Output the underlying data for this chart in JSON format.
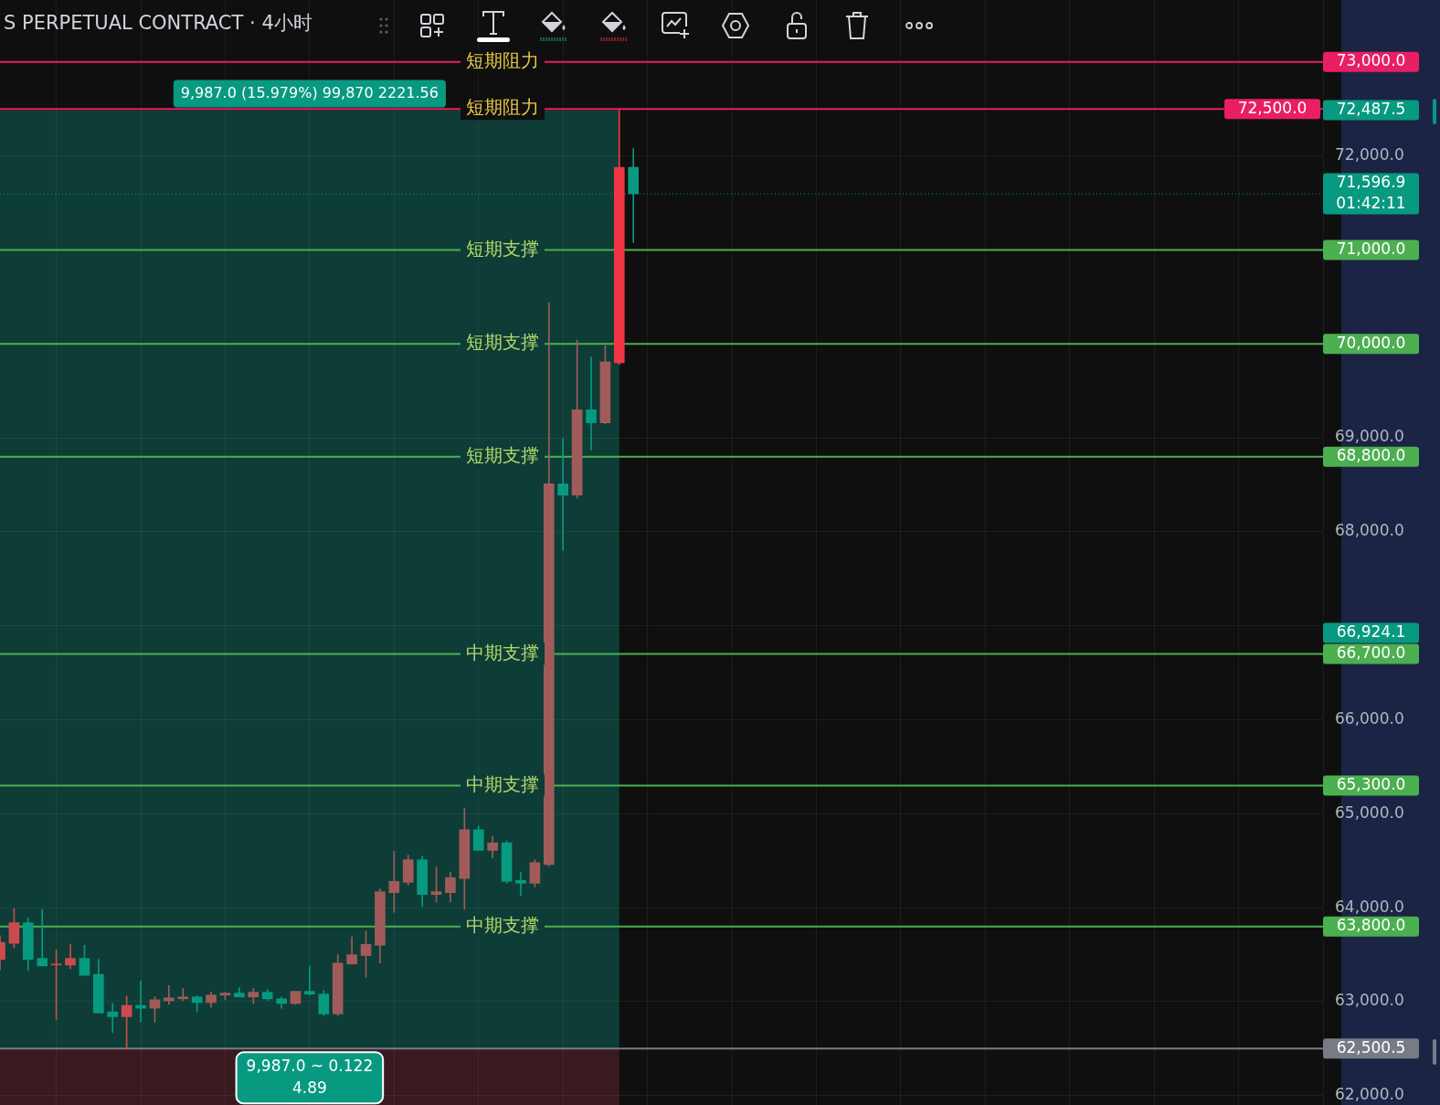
{
  "chart_data": {
    "type": "candlestick",
    "title": "S PERPETUAL CONTRACT · 4小时",
    "categories": [
      null,
      null,
      null,
      null,
      null,
      null,
      null,
      null,
      null,
      null,
      null,
      null,
      null,
      null,
      null,
      null,
      null,
      null,
      null,
      null,
      null,
      null,
      null,
      null,
      null,
      null,
      null,
      null,
      null,
      null,
      null,
      null,
      null,
      null,
      null,
      null,
      null,
      null,
      null,
      null,
      null,
      null,
      null,
      null,
      null,
      null,
      null,
      null,
      null,
      null,
      null,
      null,
      null,
      null,
      null,
      null,
      null,
      null,
      null,
      null,
      null,
      null,
      null,
      null,
      null,
      null,
      null,
      null,
      null,
      null,
      null,
      null,
      null,
      null,
      null,
      null,
      null,
      null,
      null,
      null,
      null,
      null,
      null,
      null,
      null,
      null,
      null,
      null,
      null,
      null,
      null,
      null,
      null,
      null,
      null
    ],
    "ohlc": [
      [
        63450,
        63700,
        63340,
        63630
      ],
      [
        63620,
        63990,
        63570,
        63840
      ],
      [
        63840,
        63890,
        63330,
        63450
      ],
      [
        63460,
        63980,
        63380,
        63380
      ],
      [
        63390,
        63550,
        62810,
        63400
      ],
      [
        63390,
        63610,
        63350,
        63460
      ],
      [
        63460,
        63600,
        63280,
        63280
      ],
      [
        63290,
        63450,
        62880,
        62880
      ],
      [
        62890,
        62980,
        62670,
        62840
      ],
      [
        62840,
        63060,
        62500.5,
        62960
      ],
      [
        62960,
        63220,
        62780,
        62930
      ],
      [
        62930,
        63050,
        62780,
        63020
      ],
      [
        63010,
        63170,
        62970,
        63040
      ],
      [
        63030,
        63140,
        63010,
        63050
      ],
      [
        63050,
        63060,
        62890,
        62990
      ],
      [
        62990,
        63100,
        62940,
        63070
      ],
      [
        63070,
        63100,
        63020,
        63090
      ],
      [
        63090,
        63150,
        63050,
        63050
      ],
      [
        63050,
        63140,
        62980,
        63100
      ],
      [
        63100,
        63130,
        63010,
        63030
      ],
      [
        63030,
        63050,
        62930,
        62980
      ],
      [
        62980,
        63110,
        62970,
        63110
      ],
      [
        63110,
        63380,
        63070,
        63080
      ],
      [
        63080,
        63120,
        62850,
        62870
      ],
      [
        62870,
        63500,
        62850,
        63410
      ],
      [
        63400,
        63690,
        63400,
        63500
      ],
      [
        63490,
        63750,
        63260,
        63610
      ],
      [
        63600,
        64200,
        63410,
        64170
      ],
      [
        64160,
        64600,
        63950,
        64280
      ],
      [
        64270,
        64560,
        64240,
        64510
      ],
      [
        64510,
        64550,
        64010,
        64140
      ],
      [
        64140,
        64430,
        64060,
        64170
      ],
      [
        64160,
        64380,
        64060,
        64320
      ],
      [
        64310,
        65060,
        63980,
        64830
      ],
      [
        64830,
        64870,
        64610,
        64610
      ],
      [
        64610,
        64760,
        64530,
        64690
      ],
      [
        64690,
        64710,
        64260,
        64280
      ],
      [
        64290,
        64380,
        64130,
        64260
      ],
      [
        64260,
        64510,
        64220,
        64480
      ],
      [
        64460,
        70440,
        64440,
        68510
      ],
      [
        68510,
        68990,
        67800,
        68390
      ],
      [
        68390,
        70040,
        68360,
        69300
      ],
      [
        69300,
        69860,
        68870,
        69160
      ],
      [
        69160,
        69980,
        69150,
        69810
      ],
      [
        69800,
        72487.5,
        69780,
        71880
      ],
      [
        71880,
        72080,
        71080,
        71596.9
      ],
      null,
      null,
      null,
      null,
      null,
      null,
      null,
      null,
      null,
      null,
      null,
      null,
      null,
      null,
      null,
      null,
      null,
      null,
      null,
      null,
      null,
      null,
      null,
      null,
      null,
      null,
      null,
      null,
      null,
      null,
      null,
      null,
      null,
      null,
      null,
      null,
      null,
      null,
      null,
      null,
      null,
      null,
      null,
      null,
      null,
      null,
      null,
      null,
      null
    ],
    "colors": [
      "#cc4b50",
      "#cc4b50",
      "#089981",
      "#089981",
      "#cc4b50",
      "#cc4b50",
      "#089981",
      "#089981",
      "#089981",
      "#cc4b50",
      "#089981",
      "#a15b5a",
      "#a15b5a",
      "#a15b5a",
      "#089981",
      "#a15b5a",
      "#a15b5a",
      "#089981",
      "#a15b5a",
      "#089981",
      "#089981",
      "#a15b5a",
      "#089981",
      "#089981",
      "#a15b5a",
      "#a15b5a",
      "#a15b5a",
      "#a15b5a",
      "#a15b5a",
      "#a15b5a",
      "#089981",
      "#a15b5a",
      "#a15b5a",
      "#a15b5a",
      "#089981",
      "#a15b5a",
      "#089981",
      "#089981",
      "#a15b5a",
      "#a15b5a",
      "#089981",
      "#a15b5a",
      "#089981",
      "#a15b5a",
      "#f23645",
      "#089981",
      null,
      null,
      null,
      null,
      null,
      null,
      null,
      null,
      null,
      null,
      null,
      null,
      null,
      null,
      null,
      null,
      null,
      null,
      null,
      null,
      null,
      null,
      null,
      null,
      null,
      null,
      null,
      null,
      null,
      null,
      null,
      null,
      null,
      null,
      null,
      null,
      null,
      null,
      null,
      null,
      null,
      null,
      null,
      null,
      null,
      null,
      null,
      null,
      null
    ],
    "ylim": [
      61900,
      73660
    ],
    "yticks": [
      {
        "value": 62000,
        "label": "62,000.0"
      },
      {
        "value": 63000,
        "label": "63,000.0"
      },
      {
        "value": 64000,
        "label": "64,000.0"
      },
      {
        "value": 65000,
        "label": "65,000.0"
      },
      {
        "value": 66000,
        "label": "66,000.0"
      },
      {
        "value": 67000,
        "label": null
      },
      {
        "value": 68000,
        "label": "68,000.0"
      },
      {
        "value": 69000,
        "label": "69,000.0"
      },
      {
        "value": 72000,
        "label": "72,000.0"
      }
    ],
    "y2lim": [
      61900,
      73660
    ],
    "y2ticks": [
      {
        "value": 66924.1,
        "label": "66,924.1"
      },
      {
        "value": 72487.5,
        "label": "72,487.5"
      }
    ],
    "tick_labels": "y",
    "grid": true,
    "ref_lines": [
      {
        "axis": "y",
        "value": 73000,
        "label": "73,000.0",
        "color": "#e91e63"
      },
      {
        "axis": "y",
        "value": 72500,
        "label": "72,500.0",
        "color": "#e91e63"
      },
      {
        "axis": "y",
        "value": 71596.9,
        "label": "71,596.9\n01:42:11",
        "color": "#089981",
        "line_style": "dotted"
      },
      {
        "axis": "y",
        "value": 71000,
        "label": "71,000.0",
        "color": "#4caf50"
      },
      {
        "axis": "y",
        "value": 70000,
        "label": "70,000.0",
        "color": "#4caf50"
      },
      {
        "axis": "y",
        "value": 68800,
        "label": "68,800.0",
        "color": "#4caf50"
      },
      {
        "axis": "y",
        "value": 66700,
        "label": "66,700.0",
        "color": "#4caf50"
      },
      {
        "axis": "y",
        "value": 65300,
        "label": "65,300.0",
        "color": "#4caf50"
      },
      {
        "axis": "y",
        "value": 63800,
        "label": "63,800.0",
        "color": "#4caf50"
      },
      {
        "axis": "y",
        "value": 62500.5,
        "label": "62,500.5",
        "color": "#787b86"
      }
    ],
    "bands": [
      {
        "axis": "y",
        "from": 62500.5,
        "to": 72487.5,
        "color": "#0d3d36"
      },
      {
        "axis": "y",
        "from": 61900,
        "to": 62500.5,
        "color": "#3a1a1e"
      }
    ],
    "annotations": [
      "9,987.0 (15.979%) 99,870 2221.56",
      "9,987.0 ~ 0.122\n4.89",
      {
        "text": "短期阻力",
        "y": 73000
      },
      {
        "text": "短期阻力",
        "y": 72500
      },
      {
        "text": "短期支撑",
        "y": 71000
      },
      {
        "text": "短期支撑",
        "y": 70000
      },
      {
        "text": "短期支撑",
        "y": 68800
      },
      {
        "text": "中期支撑",
        "y": 66700
      },
      {
        "text": "中期支撑",
        "y": 65300
      },
      {
        "text": "中期支撑",
        "y": 63800
      }
    ]
  }
}
